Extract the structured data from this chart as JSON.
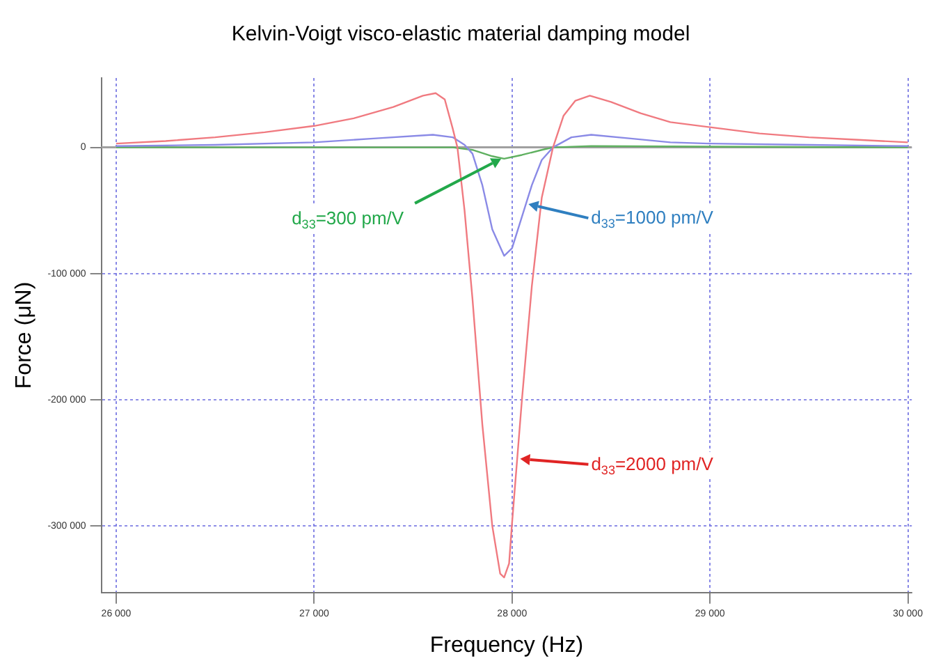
{
  "chart_data": {
    "type": "line",
    "title": "Kelvin-Voigt visco-elastic material damping model",
    "xlabel": "Frequency (Hz)",
    "ylabel": "Force (μN)",
    "xlim": [
      25925,
      30020
    ],
    "xticks": [
      {
        "value": 26000,
        "label": "26 000"
      },
      {
        "value": 27000,
        "label": "27 000"
      },
      {
        "value": 28000,
        "label": "28 000"
      },
      {
        "value": 29000,
        "label": "29 000"
      },
      {
        "value": 30000,
        "label": "30 000"
      }
    ],
    "ylim": [
      -353000,
      55000
    ],
    "yticks": [
      {
        "value": -300000,
        "label": "-300 000"
      },
      {
        "value": -200000,
        "label": "-200 000"
      },
      {
        "value": -100000,
        "label": "-100 000"
      },
      0
    ],
    "grid": true,
    "legend": false,
    "marker": "none",
    "line_style": "solid",
    "ref_lines": [
      {
        "axis": "y",
        "value": 0,
        "color": "#a0a0a0"
      }
    ],
    "series": [
      {
        "color": "#f07a80",
        "x": [
          26000,
          26250,
          26500,
          26750,
          27000,
          27200,
          27400,
          27550,
          27614,
          27660,
          27700,
          27724,
          27760,
          27800,
          27850,
          27900,
          27940,
          27960,
          27985,
          28000,
          28050,
          28100,
          28150,
          28207,
          28260,
          28320,
          28393,
          28500,
          28650,
          28800,
          29000,
          29250,
          29500,
          29750,
          30000
        ],
        "values": [
          3000,
          5000,
          8000,
          12000,
          17000,
          23000,
          32000,
          41000,
          43000,
          38000,
          15000,
          0,
          -50000,
          -120000,
          -220000,
          -300000,
          -338000,
          -341000,
          -330000,
          -298000,
          -200000,
          -110000,
          -40000,
          0,
          25000,
          37000,
          41000,
          36000,
          27000,
          20000,
          16000,
          11000,
          8000,
          6000,
          4000
        ]
      },
      {
        "color": "#8a8ae6",
        "x": [
          26000,
          26500,
          27000,
          27300,
          27600,
          27700,
          27760,
          27800,
          27850,
          27900,
          27960,
          28000,
          28050,
          28100,
          28150,
          28207,
          28300,
          28400,
          28600,
          28800,
          29000,
          29500,
          30000
        ],
        "values": [
          1000,
          2000,
          4000,
          7000,
          10000,
          8000,
          2000,
          -5000,
          -30000,
          -65000,
          -86000,
          -80000,
          -55000,
          -30000,
          -10000,
          0,
          8000,
          10000,
          7000,
          4000,
          3000,
          2000,
          1000
        ]
      },
      {
        "color": "#5fb060",
        "x": [
          26000,
          27500,
          27700,
          27800,
          27900,
          27960,
          28050,
          28150,
          28207,
          28400,
          30000
        ],
        "values": [
          0,
          0,
          0,
          -2000,
          -7000,
          -9000,
          -6000,
          -2000,
          0,
          1000,
          0
        ]
      }
    ],
    "annotations": [
      {
        "text": "d$_{33}$=300 pm/V",
        "x": 27945,
        "y": -9000
      },
      {
        "text": "d$_{33}$=1000 pm/V",
        "x": 28083,
        "y": -45000
      },
      {
        "text": "d$_{33}$=2000 pm/V",
        "x": 28041,
        "y": -247000
      }
    ]
  }
}
